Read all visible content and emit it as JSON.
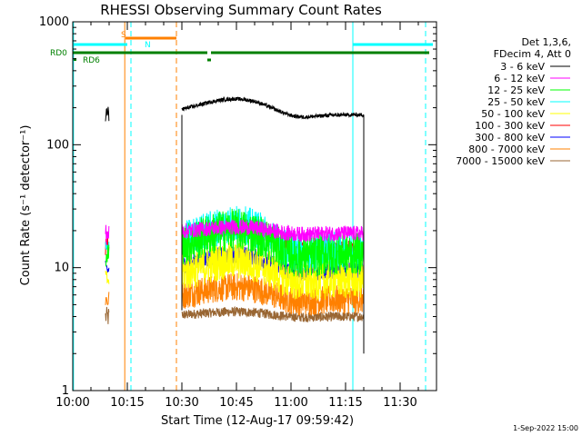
{
  "chart_data": {
    "type": "line",
    "title": "RHESSI Observing Summary Count Rates",
    "xlabel": "Start Time (12-Aug-17 09:59:42)",
    "ylabel": "Count Rate (s⁻¹ detector⁻¹)",
    "y_scale": "log",
    "ylim": [
      1,
      1000
    ],
    "xlim": [
      "10:00",
      "11:40"
    ],
    "x_ticks": [
      "10:00",
      "10:15",
      "10:30",
      "10:45",
      "11:00",
      "11:15",
      "11:30"
    ],
    "y_ticks": [
      "1",
      "10",
      "100",
      "1000"
    ],
    "legend_header": [
      "Det 1,3,6,",
      "FDecim 4, Att 0"
    ],
    "legend_position": "right",
    "series": [
      {
        "name": "3 - 6 keV",
        "color": "#000000",
        "level": 175,
        "noise": 0.02,
        "sense": 1
      },
      {
        "name": "6 - 12 keV",
        "color": "#ff00ff",
        "level": 19,
        "noise": 0.08,
        "sense": 0.4
      },
      {
        "name": "12 - 25 keV",
        "color": "#00ff00",
        "level": 13,
        "noise": 0.22,
        "sense": 1.5
      },
      {
        "name": "25 - 50 keV",
        "color": "#00ffff",
        "level": 14,
        "noise": 0.2,
        "sense": 1.6
      },
      {
        "name": "50 - 100 keV",
        "color": "#ffff00",
        "level": 8,
        "noise": 0.2,
        "sense": 1.2
      },
      {
        "name": "100 - 300 keV",
        "color": "#ff0000",
        "level": 15,
        "noise": 0.06,
        "sense": 1.0
      },
      {
        "name": "300 - 800 keV",
        "color": "#0000ff",
        "level": 9.5,
        "noise": 0.09,
        "sense": 1.0
      },
      {
        "name": "800 - 7000 keV",
        "color": "#ff8000",
        "level": 5.5,
        "noise": 0.15,
        "sense": 0.8
      },
      {
        "name": "7000 - 15000 keV",
        "color": "#996633",
        "level": 4,
        "noise": 0.05,
        "sense": 0.3
      }
    ],
    "data_intervals": [
      {
        "start": "10:09",
        "end": "10:10"
      },
      {
        "start": "10:30",
        "end": "11:20"
      }
    ],
    "flags": [
      {
        "label": "S",
        "color": "#ff8000",
        "segments": [
          [
            "10:14.5",
            "10:28.5"
          ]
        ]
      },
      {
        "label": "N",
        "color": "#00ffff",
        "segments": [
          [
            "10:00",
            "10:15"
          ],
          [
            "11:17",
            "11:39"
          ]
        ]
      },
      {
        "label": "RD0",
        "color": "#008000",
        "segments": [
          [
            "10:00",
            "10:37"
          ],
          [
            "10:38",
            "11:25"
          ],
          [
            "11:25",
            "11:38"
          ]
        ]
      },
      {
        "label": "RD6",
        "color": "#008000",
        "segments": [
          [
            "10:37",
            "10:38"
          ]
        ]
      }
    ],
    "vlines": [
      {
        "time": "10:00.2",
        "color": "#00ffff",
        "style": "solid"
      },
      {
        "time": "10:14.3",
        "color": "#ff8000",
        "style": "solid"
      },
      {
        "time": "10:16",
        "color": "#00ffff",
        "style": "dashed"
      },
      {
        "time": "10:28.5",
        "color": "#ff8000",
        "style": "dashed"
      },
      {
        "time": "11:17",
        "color": "#00ffff",
        "style": "solid"
      },
      {
        "time": "11:37",
        "color": "#00ffff",
        "style": "dashed"
      }
    ]
  },
  "footer": {
    "date": "1-Sep-2022 15:00"
  }
}
